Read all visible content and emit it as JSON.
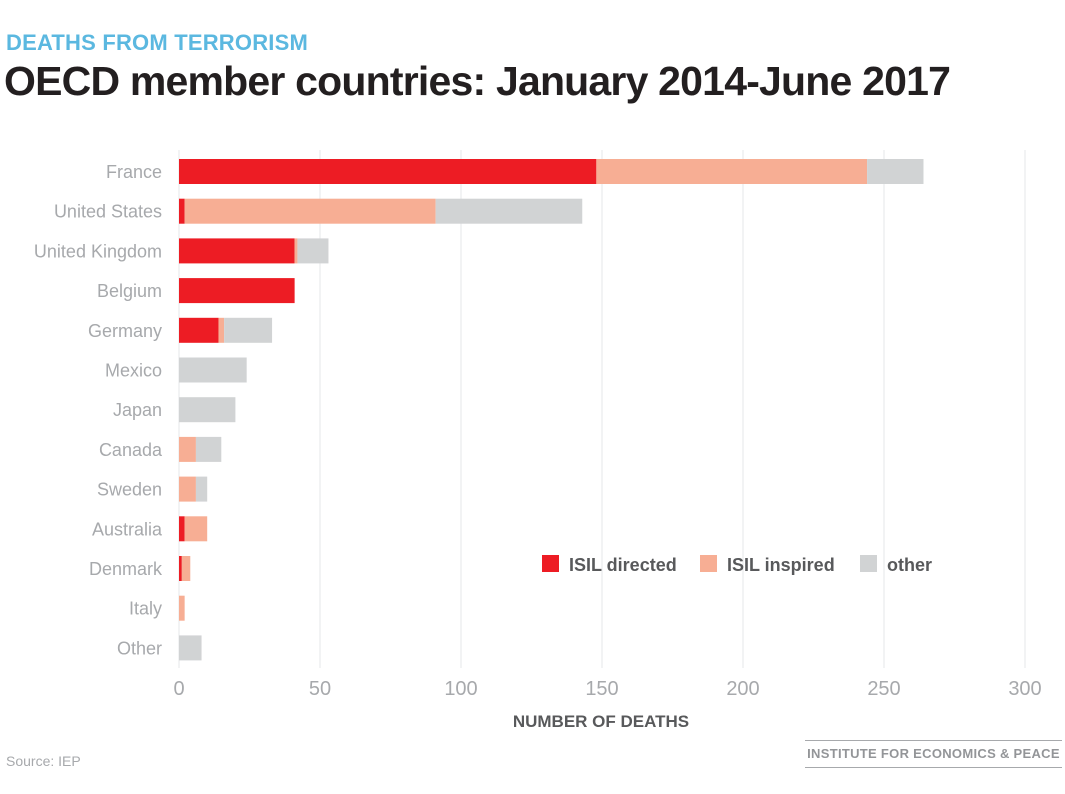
{
  "kicker": "DEATHS FROM TERRORISM",
  "title": "OECD member countries: January  2014-June 2017",
  "source": "Source: IEP",
  "logo_text": "INSTITUTE FOR ECONOMICS & PEACE",
  "colors": {
    "isil_directed": "#ed1c24",
    "isil_inspired": "#f7ae94",
    "other": "#d1d3d4",
    "grid": "#e6e7e8",
    "axis_text": "#a7a9ac",
    "axis_title": "#58595b",
    "legend_text": "#58595b",
    "kicker": "#5bb8e0",
    "title": "#231f20"
  },
  "chart_data": {
    "type": "bar",
    "orientation": "horizontal",
    "stacked": true,
    "categories": [
      "France",
      "United States",
      "United Kingdom",
      "Belgium",
      "Germany",
      "Mexico",
      "Japan",
      "Canada",
      "Sweden",
      "Australia",
      "Denmark",
      "Italy",
      "Other"
    ],
    "series": [
      {
        "name": "ISIL directed",
        "values": [
          148,
          2,
          41,
          41,
          14,
          0,
          0,
          0,
          0,
          2,
          1,
          0,
          0
        ]
      },
      {
        "name": "ISIL inspired",
        "values": [
          96,
          89,
          1,
          0,
          2,
          0,
          0,
          6,
          6,
          8,
          3,
          2,
          0
        ]
      },
      {
        "name": "other",
        "values": [
          20,
          52,
          11,
          0,
          17,
          24,
          20,
          9,
          4,
          0,
          0,
          0,
          8
        ]
      }
    ],
    "xlabel": "NUMBER OF DEATHS",
    "ylabel": "",
    "xlim": [
      0,
      300
    ],
    "xticks": [
      0,
      50,
      100,
      150,
      200,
      250,
      300
    ],
    "grid": true,
    "legend_position": "lower-right"
  }
}
